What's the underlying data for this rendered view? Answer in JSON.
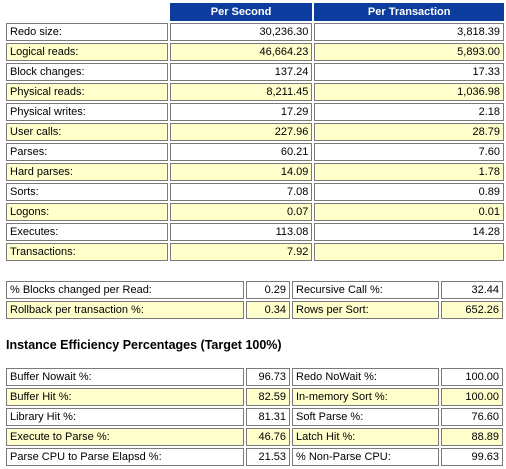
{
  "load_profile": {
    "headers": [
      "Per Second",
      "Per Transaction"
    ],
    "rows": [
      {
        "label": "Redo size:",
        "per_second": "30,236.30",
        "per_transaction": "3,818.39"
      },
      {
        "label": "Logical reads:",
        "per_second": "46,664.23",
        "per_transaction": "5,893.00"
      },
      {
        "label": "Block changes:",
        "per_second": "137.24",
        "per_transaction": "17.33"
      },
      {
        "label": "Physical reads:",
        "per_second": "8,211.45",
        "per_transaction": "1,036.98"
      },
      {
        "label": "Physical writes:",
        "per_second": "17.29",
        "per_transaction": "2.18"
      },
      {
        "label": "User calls:",
        "per_second": "227.96",
        "per_transaction": "28.79"
      },
      {
        "label": "Parses:",
        "per_second": "60.21",
        "per_transaction": "7.60"
      },
      {
        "label": "Hard parses:",
        "per_second": "14.09",
        "per_transaction": "1.78"
      },
      {
        "label": "Sorts:",
        "per_second": "7.08",
        "per_transaction": "0.89"
      },
      {
        "label": "Logons:",
        "per_second": "0.07",
        "per_transaction": "0.01"
      },
      {
        "label": "Executes:",
        "per_second": "113.08",
        "per_transaction": "14.28"
      },
      {
        "label": "Transactions:",
        "per_second": "7.92",
        "per_transaction": ""
      }
    ]
  },
  "ratios": [
    {
      "label1": "% Blocks changed per Read:",
      "value1": "0.29",
      "label2": "Recursive Call %:",
      "value2": "32.44"
    },
    {
      "label1": "Rollback per transaction %:",
      "value1": "0.34",
      "label2": "Rows per Sort:",
      "value2": "652.26"
    }
  ],
  "efficiency": {
    "title": "Instance Efficiency Percentages (Target 100%)",
    "rows": [
      {
        "label1": "Buffer Nowait %:",
        "value1": "96.73",
        "label2": "Redo NoWait %:",
        "value2": "100.00"
      },
      {
        "label1": "Buffer Hit %:",
        "value1": "82.59",
        "label2": "In-memory Sort %:",
        "value2": "100.00"
      },
      {
        "label1": "Library Hit %:",
        "value1": "81.31",
        "label2": "Soft Parse %:",
        "value2": "76.60"
      },
      {
        "label1": "Execute to Parse %:",
        "value1": "46.76",
        "label2": "Latch Hit %:",
        "value2": "88.89"
      },
      {
        "label1": "Parse CPU to Parse Elapsd %:",
        "value1": "21.53",
        "label2": "% Non-Parse CPU:",
        "value2": "99.63"
      }
    ]
  }
}
